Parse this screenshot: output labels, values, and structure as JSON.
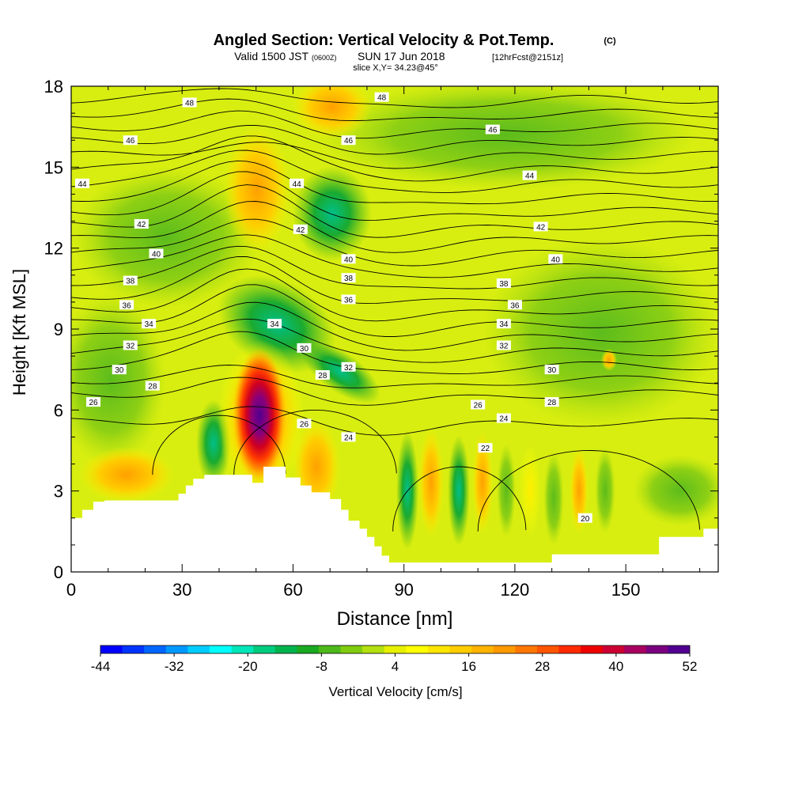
{
  "header": {
    "title": "Angled Section: Vertical Velocity & Pot.Temp.",
    "title_tag": "(C)",
    "valid_prefix": "Valid 1500 JST",
    "valid_zone": "(0600Z)",
    "valid_date": "SUN 17 Jun 2018",
    "valid_fcst": "[12hrFcst@2151z]",
    "slice": "slice X,Y= 34.23@45°"
  },
  "chart_data": {
    "type": "heatmap",
    "xlabel": "Distance [nm]",
    "ylabel": "Height [Kft MSL]",
    "xlim": [
      0,
      175
    ],
    "ylim": [
      0,
      18
    ],
    "x_ticks": [
      0,
      30,
      60,
      90,
      120,
      150
    ],
    "y_ticks": [
      0,
      3,
      6,
      9,
      12,
      15,
      18
    ],
    "grid": false,
    "terrain": [
      [
        0,
        2
      ],
      [
        3,
        2
      ],
      [
        3,
        2.3
      ],
      [
        6,
        2.3
      ],
      [
        6,
        2.6
      ],
      [
        9,
        2.6
      ],
      [
        9,
        2.65
      ],
      [
        29,
        2.65
      ],
      [
        29,
        2.9
      ],
      [
        31,
        2.9
      ],
      [
        31,
        3.2
      ],
      [
        33,
        3.2
      ],
      [
        33,
        3.45
      ],
      [
        36,
        3.45
      ],
      [
        36,
        3.6
      ],
      [
        49,
        3.6
      ],
      [
        49,
        3.3
      ],
      [
        52,
        3.3
      ],
      [
        52,
        3.9
      ],
      [
        58,
        3.9
      ],
      [
        58,
        3.5
      ],
      [
        62,
        3.5
      ],
      [
        62,
        3.2
      ],
      [
        65,
        3.2
      ],
      [
        65,
        2.95
      ],
      [
        70,
        2.95
      ],
      [
        70,
        2.7
      ],
      [
        73,
        2.7
      ],
      [
        73,
        2.3
      ],
      [
        75,
        2.3
      ],
      [
        75,
        1.9
      ],
      [
        78,
        1.9
      ],
      [
        78,
        1.6
      ],
      [
        80,
        1.6
      ],
      [
        80,
        1.3
      ],
      [
        82,
        1.3
      ],
      [
        82,
        0.95
      ],
      [
        84,
        0.95
      ],
      [
        84,
        0.6
      ],
      [
        86,
        0.6
      ],
      [
        86,
        0.35
      ],
      [
        130,
        0.35
      ],
      [
        130,
        0.65
      ],
      [
        143,
        0.65
      ],
      [
        143,
        0.35
      ],
      [
        143,
        0.65
      ],
      [
        159,
        0.65
      ],
      [
        159,
        1.3
      ],
      [
        171,
        1.3
      ],
      [
        171,
        1.6
      ],
      [
        175,
        1.6
      ]
    ],
    "isotherm_labels": [
      {
        "x": 32,
        "y": 17.4,
        "label": "48"
      },
      {
        "x": 84,
        "y": 17.6,
        "label": "48"
      },
      {
        "x": 16,
        "y": 16.0,
        "label": "46"
      },
      {
        "x": 75,
        "y": 16.0,
        "label": "46"
      },
      {
        "x": 114,
        "y": 16.4,
        "label": "46"
      },
      {
        "x": 3,
        "y": 14.4,
        "label": "44"
      },
      {
        "x": 61,
        "y": 14.4,
        "label": "44"
      },
      {
        "x": 124,
        "y": 14.7,
        "label": "44"
      },
      {
        "x": 19,
        "y": 12.9,
        "label": "42"
      },
      {
        "x": 62,
        "y": 12.7,
        "label": "42"
      },
      {
        "x": 127,
        "y": 12.8,
        "label": "42"
      },
      {
        "x": 23,
        "y": 11.8,
        "label": "40"
      },
      {
        "x": 75,
        "y": 11.6,
        "label": "40"
      },
      {
        "x": 131,
        "y": 11.6,
        "label": "40"
      },
      {
        "x": 16,
        "y": 10.8,
        "label": "38"
      },
      {
        "x": 75,
        "y": 10.9,
        "label": "38"
      },
      {
        "x": 117,
        "y": 10.7,
        "label": "38"
      },
      {
        "x": 15,
        "y": 9.9,
        "label": "36"
      },
      {
        "x": 75,
        "y": 10.1,
        "label": "36"
      },
      {
        "x": 120,
        "y": 9.9,
        "label": "36"
      },
      {
        "x": 21,
        "y": 9.2,
        "label": "34"
      },
      {
        "x": 55,
        "y": 9.2,
        "label": "34"
      },
      {
        "x": 117,
        "y": 9.2,
        "label": "34"
      },
      {
        "x": 16,
        "y": 8.4,
        "label": "32"
      },
      {
        "x": 75,
        "y": 7.6,
        "label": "32"
      },
      {
        "x": 117,
        "y": 8.4,
        "label": "32"
      },
      {
        "x": 13,
        "y": 7.5,
        "label": "30"
      },
      {
        "x": 63,
        "y": 8.3,
        "label": "30"
      },
      {
        "x": 130,
        "y": 7.5,
        "label": "30"
      },
      {
        "x": 22,
        "y": 6.9,
        "label": "28"
      },
      {
        "x": 68,
        "y": 7.3,
        "label": "28"
      },
      {
        "x": 130,
        "y": 6.3,
        "label": "28"
      },
      {
        "x": 6,
        "y": 6.3,
        "label": "26"
      },
      {
        "x": 63,
        "y": 5.5,
        "label": "26"
      },
      {
        "x": 110,
        "y": 6.2,
        "label": "26"
      },
      {
        "x": 75,
        "y": 5.0,
        "label": "24"
      },
      {
        "x": 117,
        "y": 5.7,
        "label": "24"
      },
      {
        "x": 112,
        "y": 4.6,
        "label": "22"
      },
      {
        "x": 139,
        "y": 2.0,
        "label": "20"
      }
    ],
    "colorbar": {
      "label": "Vertical Velocity [cm/s]",
      "min": -44,
      "max": 52,
      "step": 4,
      "tick_labels": [
        "-44",
        "-32",
        "-20",
        "-8",
        "4",
        "16",
        "28",
        "40",
        "52"
      ],
      "colors": [
        "#0000ff",
        "#0033ff",
        "#0066ff",
        "#0099ff",
        "#00ccff",
        "#00ffff",
        "#00e6b8",
        "#00cc80",
        "#00b34d",
        "#1aaa22",
        "#4db81a",
        "#80cc10",
        "#b3e010",
        "#e6f000",
        "#ffff00",
        "#ffe600",
        "#ffcc00",
        "#ffb300",
        "#ff9900",
        "#ff7700",
        "#ff5500",
        "#ff2a00",
        "#ee0000",
        "#cc0033",
        "#a80060",
        "#7a0080",
        "#520090"
      ]
    }
  },
  "colors": {
    "background_field": "#d8ee10",
    "terrain": "#ffffff",
    "contour": "#000000"
  }
}
